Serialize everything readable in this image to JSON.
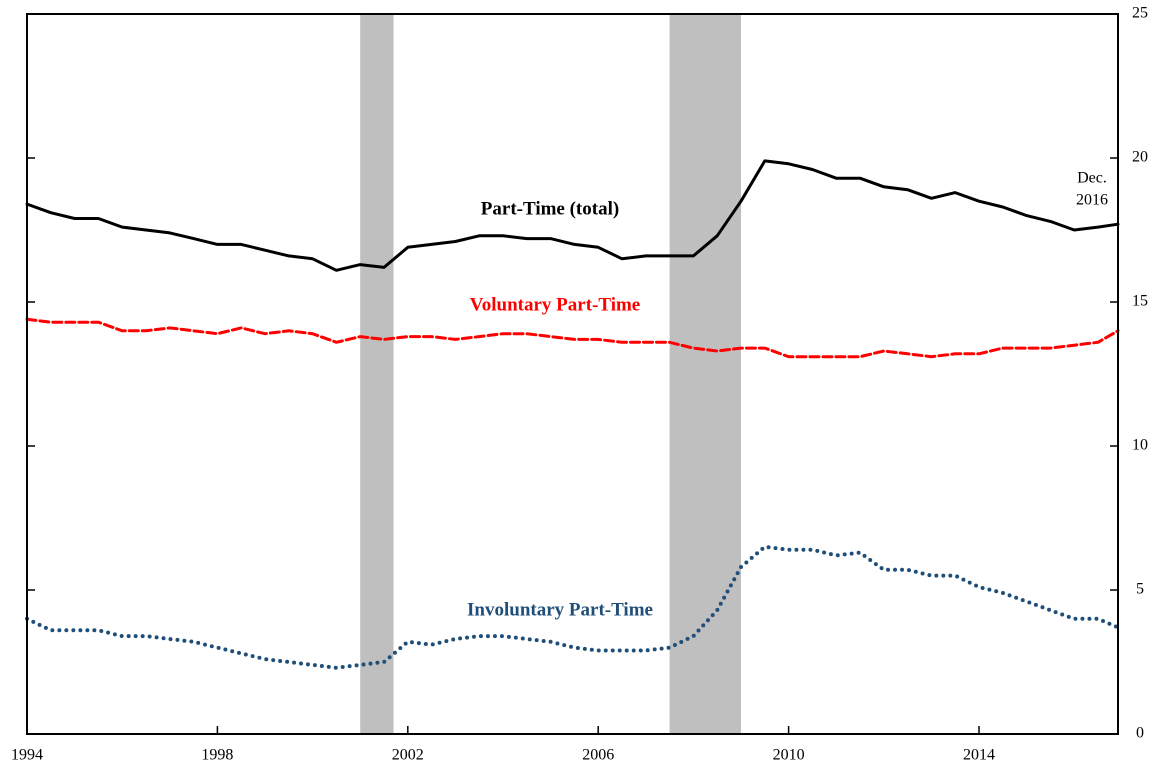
{
  "chart_data": {
    "type": "line",
    "x": [
      1994,
      1994.5,
      1995,
      1995.5,
      1996,
      1996.5,
      1997,
      1997.5,
      1998,
      1998.5,
      1999,
      1999.5,
      2000,
      2000.5,
      2001,
      2001.5,
      2002,
      2002.5,
      2003,
      2003.5,
      2004,
      2004.5,
      2005,
      2005.5,
      2006,
      2006.5,
      2007,
      2007.5,
      2008,
      2008.5,
      2009,
      2009.5,
      2010,
      2010.5,
      2011,
      2011.5,
      2012,
      2012.5,
      2013,
      2013.5,
      2014,
      2014.5,
      2015,
      2015.5,
      2016,
      2016.5,
      2016.92
    ],
    "series": [
      {
        "name": "Part-Time (total)",
        "color": "#000000",
        "style": "solid",
        "values": [
          18.4,
          18.1,
          17.9,
          17.9,
          17.6,
          17.5,
          17.4,
          17.2,
          17.0,
          17.0,
          16.8,
          16.6,
          16.5,
          16.1,
          16.3,
          16.2,
          16.9,
          17.0,
          17.1,
          17.3,
          17.3,
          17.2,
          17.2,
          17.0,
          16.9,
          16.5,
          16.6,
          16.6,
          16.6,
          17.3,
          18.5,
          19.9,
          19.8,
          19.6,
          19.3,
          19.3,
          19.0,
          18.9,
          18.6,
          18.8,
          18.5,
          18.3,
          18.0,
          17.8,
          17.5,
          17.6,
          17.7
        ]
      },
      {
        "name": "Voluntary Part-Time",
        "color": "#ff0000",
        "style": "dashed",
        "values": [
          14.4,
          14.3,
          14.3,
          14.3,
          14.0,
          14.0,
          14.1,
          14.0,
          13.9,
          14.1,
          13.9,
          14.0,
          13.9,
          13.6,
          13.8,
          13.7,
          13.8,
          13.8,
          13.7,
          13.8,
          13.9,
          13.9,
          13.8,
          13.7,
          13.7,
          13.6,
          13.6,
          13.6,
          13.4,
          13.3,
          13.4,
          13.4,
          13.1,
          13.1,
          13.1,
          13.1,
          13.3,
          13.2,
          13.1,
          13.2,
          13.2,
          13.4,
          13.4,
          13.4,
          13.5,
          13.6,
          14.0
        ]
      },
      {
        "name": "Involuntary Part-Time",
        "color": "#1f4e79",
        "style": "dotted",
        "values": [
          4.0,
          3.6,
          3.6,
          3.6,
          3.4,
          3.4,
          3.3,
          3.2,
          3.0,
          2.8,
          2.6,
          2.5,
          2.4,
          2.3,
          2.4,
          2.5,
          3.2,
          3.1,
          3.3,
          3.4,
          3.4,
          3.3,
          3.2,
          3.0,
          2.9,
          2.9,
          2.9,
          3.0,
          3.4,
          4.3,
          5.8,
          6.5,
          6.4,
          6.4,
          6.2,
          6.3,
          5.7,
          5.7,
          5.5,
          5.5,
          5.1,
          4.9,
          4.6,
          4.3,
          4.0,
          4.0,
          3.7
        ]
      }
    ],
    "recessions": [
      [
        2001.0,
        2001.7
      ],
      [
        2007.5,
        2009.0
      ]
    ],
    "recession_color": "#bfbfbf",
    "annotation": [
      "Dec.",
      "2016"
    ],
    "xlim": [
      1994,
      2016.92
    ],
    "xticks": [
      1994,
      1998,
      2002,
      2006,
      2010,
      2014
    ],
    "ylim": [
      0,
      25
    ],
    "yticks": [
      0,
      5,
      10,
      15,
      20,
      25
    ]
  }
}
